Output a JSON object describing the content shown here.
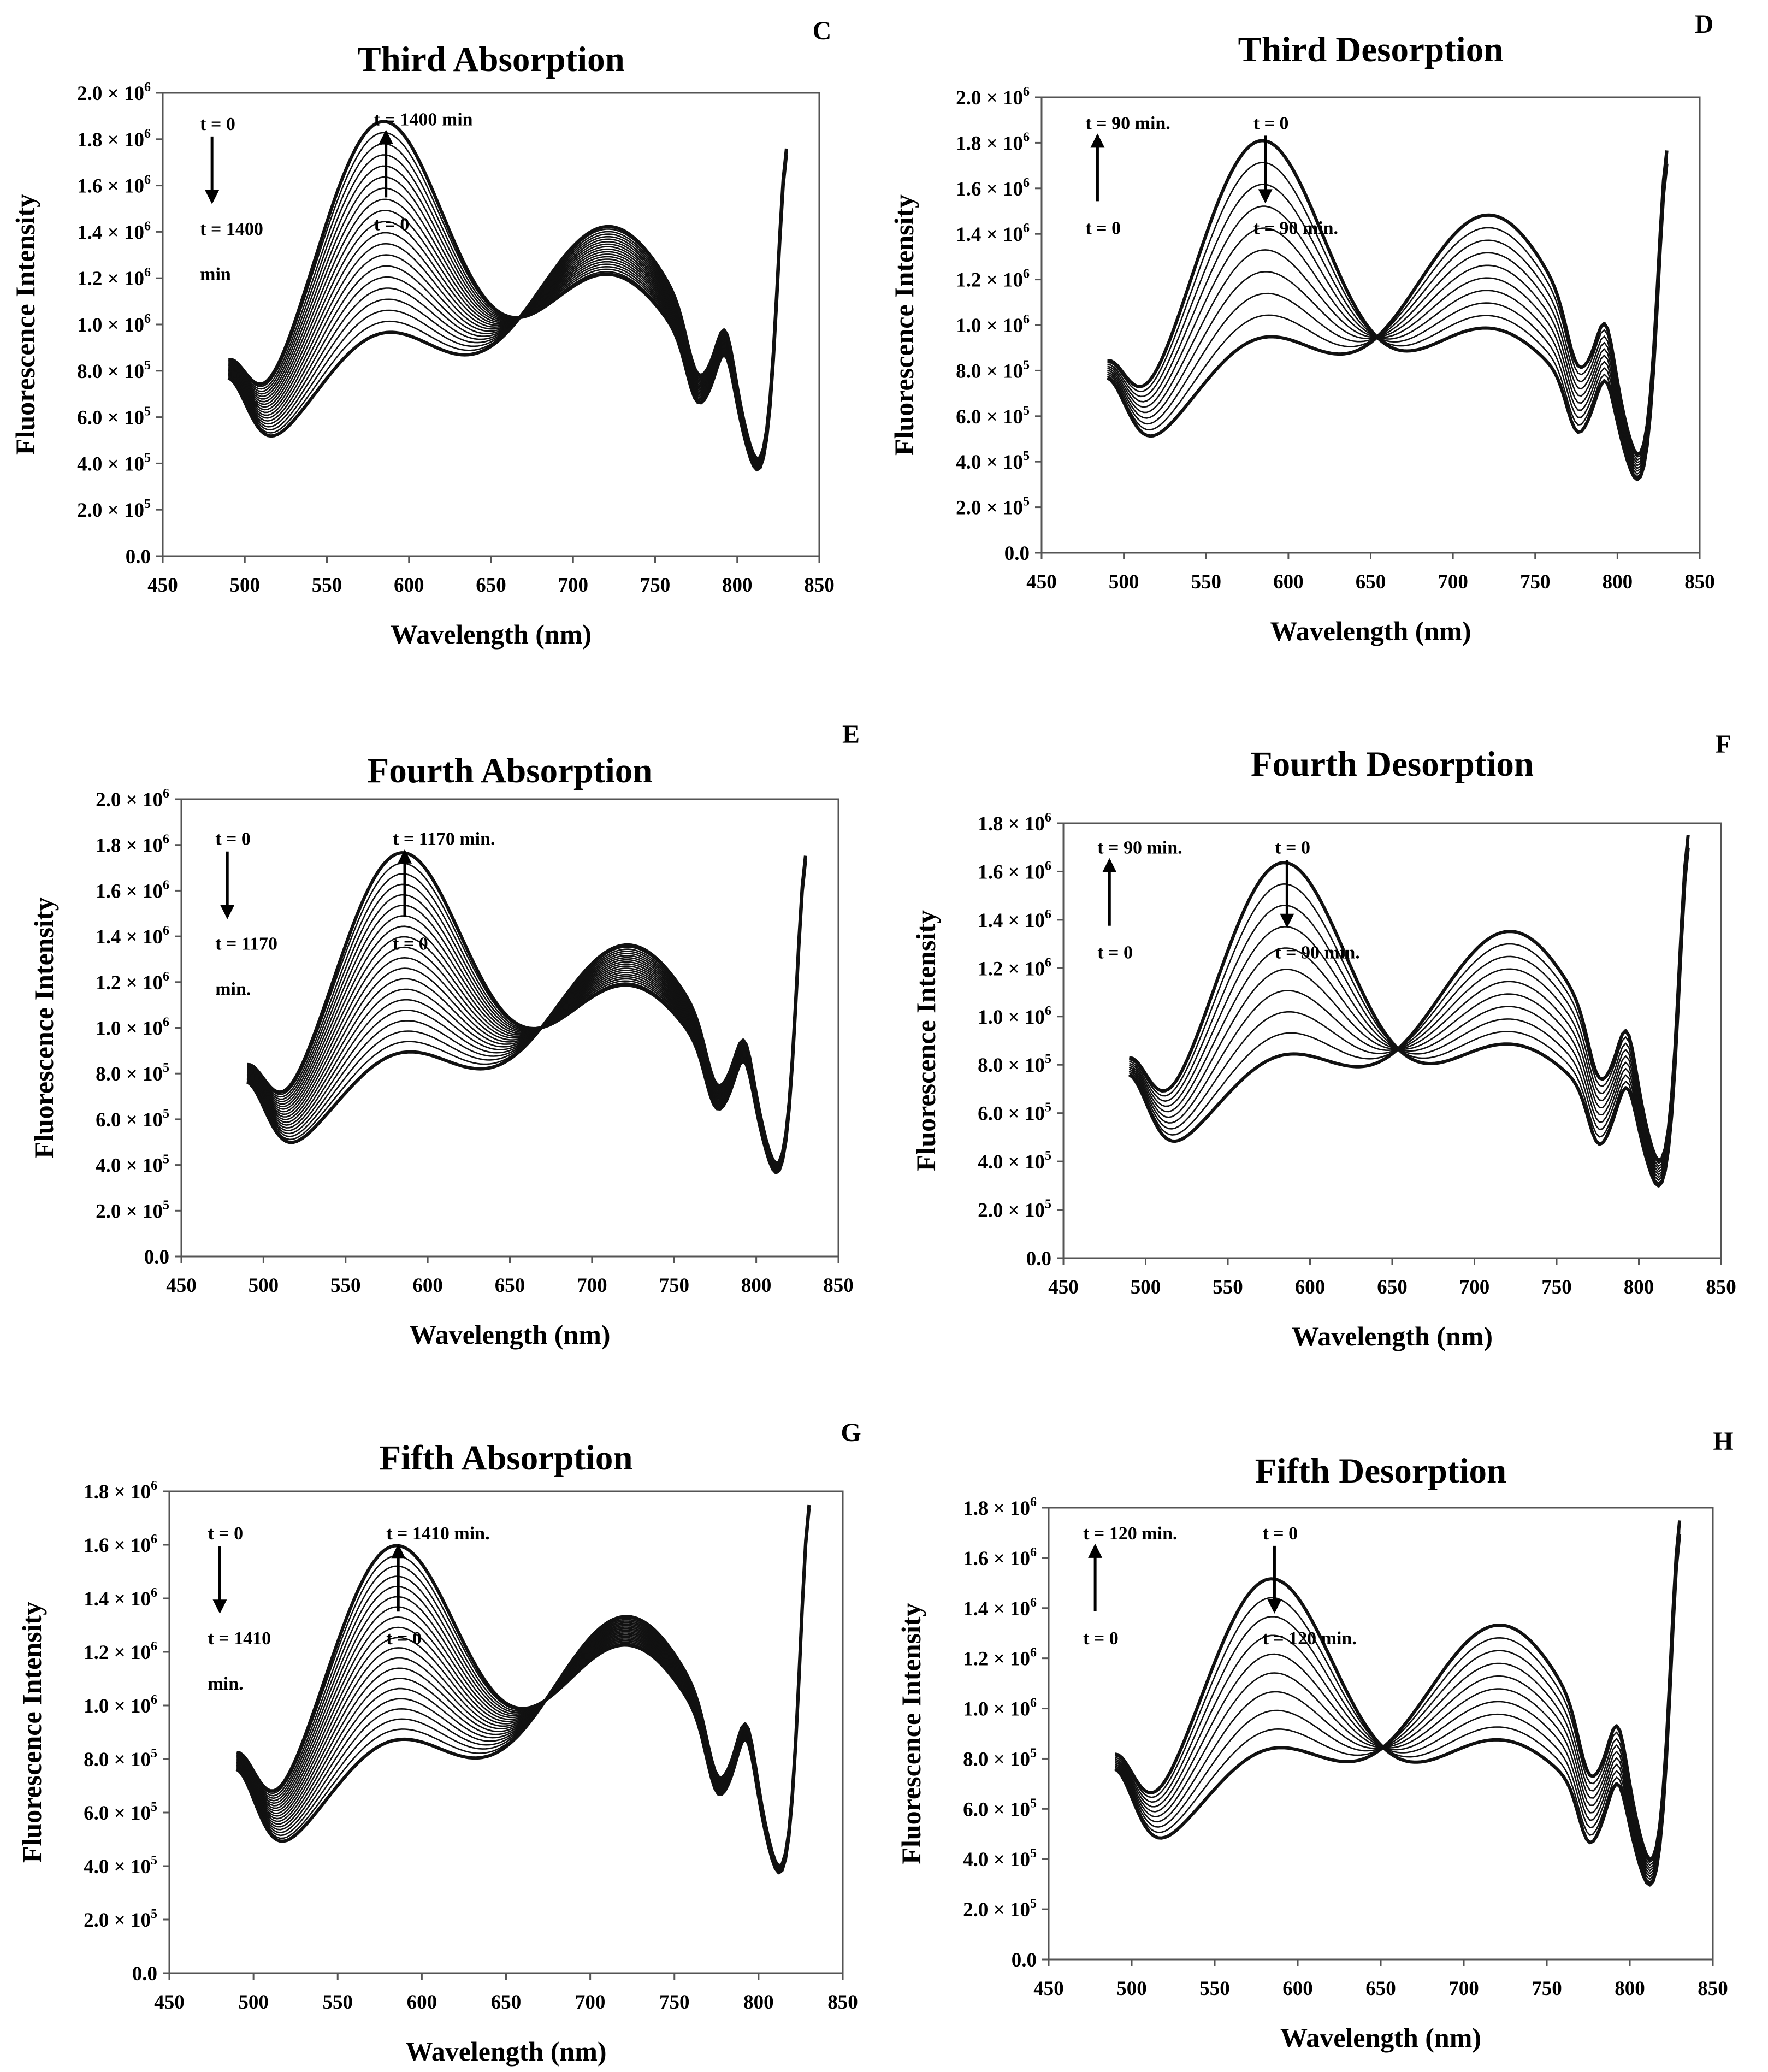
{
  "chart_data": [
    {
      "type": "line",
      "panel": "C",
      "title": "Third Absorption",
      "xlabel": "Wavelength (nm)",
      "ylabel": "Fluorescence Intensity",
      "xlim": [
        450,
        850
      ],
      "ylim": [
        0,
        2000000
      ],
      "xticks": [
        "450",
        "500",
        "550",
        "600",
        "650",
        "700",
        "750",
        "800",
        "850"
      ],
      "yticks": [
        {
          "value": 0,
          "mant": "0.0",
          "exp": ""
        },
        {
          "value": 200000,
          "mant": "2.0 × 10",
          "exp": "5"
        },
        {
          "value": 400000,
          "mant": "4.0 × 10",
          "exp": "5"
        },
        {
          "value": 600000,
          "mant": "6.0 × 10",
          "exp": "5"
        },
        {
          "value": 800000,
          "mant": "8.0 × 10",
          "exp": "5"
        },
        {
          "value": 1000000,
          "mant": "1.0 × 10",
          "exp": "6"
        },
        {
          "value": 1200000,
          "mant": "1.2 × 10",
          "exp": "6"
        },
        {
          "value": 1400000,
          "mant": "1.4 × 10",
          "exp": "6"
        },
        {
          "value": 1600000,
          "mant": "1.6 × 10",
          "exp": "6"
        },
        {
          "value": 1800000,
          "mant": "1.8 × 10",
          "exp": "6"
        },
        {
          "value": 2000000,
          "mant": "2.0 × 10",
          "exp": "6"
        }
      ],
      "series_range": {
        "count": 20,
        "first": {
          "peak1": 1850000,
          "peak2": 1210000
        },
        "last": {
          "peak1": 930000,
          "peak2": 1420000
        }
      },
      "annotations": {
        "left": {
          "start": "t = 0",
          "end": "t = 1400",
          "note": "min",
          "direction": "down"
        },
        "right": {
          "start": "t = 0",
          "end": "t = 1400 min",
          "note": "",
          "direction": "up"
        }
      }
    },
    {
      "type": "line",
      "panel": "D",
      "title": "Third Desorption",
      "xlabel": "Wavelength (nm)",
      "ylabel": "Fluorescence Intensity",
      "xlim": [
        450,
        850
      ],
      "ylim": [
        0,
        2000000
      ],
      "xticks": [
        "450",
        "500",
        "550",
        "600",
        "650",
        "700",
        "750",
        "800",
        "850"
      ],
      "yticks": [
        {
          "value": 0,
          "mant": "0.0",
          "exp": ""
        },
        {
          "value": 200000,
          "mant": "2.0 × 10",
          "exp": "5"
        },
        {
          "value": 400000,
          "mant": "4.0 × 10",
          "exp": "5"
        },
        {
          "value": 600000,
          "mant": "6.0 × 10",
          "exp": "5"
        },
        {
          "value": 800000,
          "mant": "8.0 × 10",
          "exp": "5"
        },
        {
          "value": 1000000,
          "mant": "1.0 × 10",
          "exp": "6"
        },
        {
          "value": 1200000,
          "mant": "1.2 × 10",
          "exp": "6"
        },
        {
          "value": 1400000,
          "mant": "1.4 × 10",
          "exp": "6"
        },
        {
          "value": 1600000,
          "mant": "1.6 × 10",
          "exp": "6"
        },
        {
          "value": 1800000,
          "mant": "1.8 × 10",
          "exp": "6"
        },
        {
          "value": 2000000,
          "mant": "2.0 × 10",
          "exp": "6"
        }
      ],
      "series_range": {
        "count": 10,
        "first": {
          "peak1": 910000,
          "peak2": 1480000
        },
        "last": {
          "peak1": 1790000,
          "peak2": 980000
        }
      },
      "annotations": {
        "left": {
          "start": "t = 0",
          "end": "t = 90 min.",
          "note": "",
          "direction": "up"
        },
        "right": {
          "start": "t = 0",
          "end": "t = 90 min.",
          "note": "",
          "direction": "down"
        }
      }
    },
    {
      "type": "line",
      "panel": "E",
      "title": "Fourth Absorption",
      "xlabel": "Wavelength (nm)",
      "ylabel": "Fluorescence Intensity",
      "xlim": [
        450,
        850
      ],
      "ylim": [
        0,
        2000000
      ],
      "xticks": [
        "450",
        "500",
        "550",
        "600",
        "650",
        "700",
        "750",
        "800",
        "850"
      ],
      "yticks": [
        {
          "value": 0,
          "mant": "0.0",
          "exp": ""
        },
        {
          "value": 200000,
          "mant": "2.0 × 10",
          "exp": "5"
        },
        {
          "value": 400000,
          "mant": "4.0 × 10",
          "exp": "5"
        },
        {
          "value": 600000,
          "mant": "6.0 × 10",
          "exp": "5"
        },
        {
          "value": 800000,
          "mant": "8.0 × 10",
          "exp": "5"
        },
        {
          "value": 1000000,
          "mant": "1.0 × 10",
          "exp": "6"
        },
        {
          "value": 1200000,
          "mant": "1.2 × 10",
          "exp": "6"
        },
        {
          "value": 1400000,
          "mant": "1.4 × 10",
          "exp": "6"
        },
        {
          "value": 1600000,
          "mant": "1.6 × 10",
          "exp": "6"
        },
        {
          "value": 1800000,
          "mant": "1.8 × 10",
          "exp": "6"
        },
        {
          "value": 2000000,
          "mant": "2.0 × 10",
          "exp": "6"
        }
      ],
      "series_range": {
        "count": 20,
        "first": {
          "peak1": 1740000,
          "peak2": 1180000
        },
        "last": {
          "peak1": 860000,
          "peak2": 1360000
        }
      },
      "annotations": {
        "left": {
          "start": "t = 0",
          "end": "t = 1170",
          "note": "min.",
          "direction": "down"
        },
        "right": {
          "start": "t = 0",
          "end": "t = 1170 min.",
          "note": "",
          "direction": "up"
        }
      }
    },
    {
      "type": "line",
      "panel": "F",
      "title": "Fourth Desorption",
      "xlabel": "Wavelength (nm)",
      "ylabel": "Fluorescence Intensity",
      "xlim": [
        450,
        850
      ],
      "ylim": [
        0,
        1800000
      ],
      "xticks": [
        "450",
        "500",
        "550",
        "600",
        "650",
        "700",
        "750",
        "800",
        "850"
      ],
      "yticks": [
        {
          "value": 0,
          "mant": "0.0",
          "exp": ""
        },
        {
          "value": 200000,
          "mant": "2.0 × 10",
          "exp": "5"
        },
        {
          "value": 400000,
          "mant": "4.0 × 10",
          "exp": "5"
        },
        {
          "value": 600000,
          "mant": "6.0 × 10",
          "exp": "5"
        },
        {
          "value": 800000,
          "mant": "8.0 × 10",
          "exp": "5"
        },
        {
          "value": 1000000,
          "mant": "1.0 × 10",
          "exp": "6"
        },
        {
          "value": 1200000,
          "mant": "1.2 × 10",
          "exp": "6"
        },
        {
          "value": 1400000,
          "mant": "1.4 × 10",
          "exp": "6"
        },
        {
          "value": 1600000,
          "mant": "1.6 × 10",
          "exp": "6"
        },
        {
          "value": 1800000,
          "mant": "1.8 × 10",
          "exp": "6"
        }
      ],
      "series_range": {
        "count": 10,
        "first": {
          "peak1": 810000,
          "peak2": 1350000
        },
        "last": {
          "peak1": 1620000,
          "peak2": 880000
        }
      },
      "annotations": {
        "left": {
          "start": "t = 0",
          "end": "t = 90 min.",
          "note": "",
          "direction": "up"
        },
        "right": {
          "start": "t = 0",
          "end": "t = 90 min.",
          "note": "",
          "direction": "down"
        }
      }
    },
    {
      "type": "line",
      "panel": "G",
      "title": "Fifth Absorption",
      "xlabel": "Wavelength (nm)",
      "ylabel": "Fluorescence Intensity",
      "xlim": [
        450,
        850
      ],
      "ylim": [
        0,
        1800000
      ],
      "xticks": [
        "450",
        "500",
        "550",
        "600",
        "650",
        "700",
        "750",
        "800",
        "850"
      ],
      "yticks": [
        {
          "value": 0,
          "mant": "0.0",
          "exp": ""
        },
        {
          "value": 200000,
          "mant": "2.0 × 10",
          "exp": "5"
        },
        {
          "value": 400000,
          "mant": "4.0 × 10",
          "exp": "5"
        },
        {
          "value": 600000,
          "mant": "6.0 × 10",
          "exp": "5"
        },
        {
          "value": 800000,
          "mant": "8.0 × 10",
          "exp": "5"
        },
        {
          "value": 1000000,
          "mant": "1.0 × 10",
          "exp": "6"
        },
        {
          "value": 1200000,
          "mant": "1.2 × 10",
          "exp": "6"
        },
        {
          "value": 1400000,
          "mant": "1.4 × 10",
          "exp": "6"
        },
        {
          "value": 1600000,
          "mant": "1.6 × 10",
          "exp": "6"
        },
        {
          "value": 1800000,
          "mant": "1.8 × 10",
          "exp": "6"
        }
      ],
      "series_range": {
        "count": 20,
        "first": {
          "peak1": 1570000,
          "peak2": 1220000
        },
        "last": {
          "peak1": 840000,
          "peak2": 1330000
        }
      },
      "annotations": {
        "left": {
          "start": "t = 0",
          "end": "t = 1410",
          "note": "min.",
          "direction": "down"
        },
        "right": {
          "start": "t = 0",
          "end": "t = 1410 min.",
          "note": "",
          "direction": "up"
        }
      }
    },
    {
      "type": "line",
      "panel": "H",
      "title": "Fifth Desorption",
      "xlabel": "Wavelength (nm)",
      "ylabel": "Fluorescence Intensity",
      "xlim": [
        450,
        850
      ],
      "ylim": [
        0,
        1800000
      ],
      "xticks": [
        "450",
        "500",
        "550",
        "600",
        "650",
        "700",
        "750",
        "800",
        "850"
      ],
      "yticks": [
        {
          "value": 0,
          "mant": "0.0",
          "exp": ""
        },
        {
          "value": 200000,
          "mant": "2.0 × 10",
          "exp": "5"
        },
        {
          "value": 400000,
          "mant": "4.0 × 10",
          "exp": "5"
        },
        {
          "value": 600000,
          "mant": "6.0 × 10",
          "exp": "5"
        },
        {
          "value": 800000,
          "mant": "8.0 × 10",
          "exp": "5"
        },
        {
          "value": 1000000,
          "mant": "1.0 × 10",
          "exp": "6"
        },
        {
          "value": 1200000,
          "mant": "1.2 × 10",
          "exp": "6"
        },
        {
          "value": 1400000,
          "mant": "1.4 × 10",
          "exp": "6"
        },
        {
          "value": 1600000,
          "mant": "1.6 × 10",
          "exp": "6"
        },
        {
          "value": 1800000,
          "mant": "1.8 × 10",
          "exp": "6"
        }
      ],
      "series_range": {
        "count": 10,
        "first": {
          "peak1": 810000,
          "peak2": 1330000
        },
        "last": {
          "peak1": 1500000,
          "peak2": 870000
        }
      },
      "annotations": {
        "left": {
          "start": "t = 0",
          "end": "t = 120 min.",
          "note": "",
          "direction": "up"
        },
        "right": {
          "start": "t = 0",
          "end": "t = 120 min.",
          "note": "",
          "direction": "down"
        }
      }
    }
  ]
}
